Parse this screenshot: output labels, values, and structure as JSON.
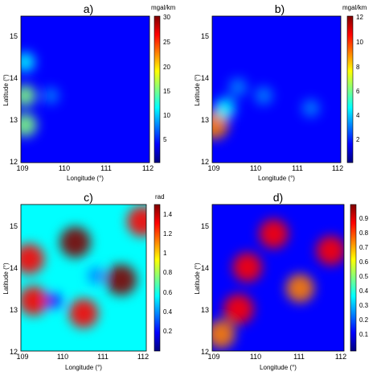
{
  "colormap": [
    "#00007f",
    "#0000ff",
    "#0080ff",
    "#00ffff",
    "#80ff80",
    "#ffff00",
    "#ff8000",
    "#ff0000",
    "#7f0000"
  ],
  "chart_data": [
    {
      "type": "heatmap",
      "title": "a)",
      "xlabel": "Longitude (°)",
      "ylabel": "Latitude (°)",
      "xlim": [
        109,
        112
      ],
      "ylim": [
        12,
        15.5
      ],
      "xticks": [
        "109",
        "110",
        "111",
        "112"
      ],
      "yticks": [
        "12",
        "13",
        "14",
        "15"
      ],
      "colorbar": {
        "unit": "mgal/km",
        "range": [
          0,
          30
        ],
        "ticks": [
          "5",
          "10",
          "15",
          "20",
          "25",
          "30"
        ]
      },
      "field": {
        "base": 0.1,
        "anomalies": [
          {
            "lon": 109.1,
            "lat": 12.9,
            "level": 0.55
          },
          {
            "lon": 109.1,
            "lat": 13.6,
            "level": 0.45
          },
          {
            "lon": 109.1,
            "lat": 14.4,
            "level": 0.35
          },
          {
            "lon": 109.7,
            "lat": 13.6,
            "level": 0.2
          }
        ]
      }
    },
    {
      "type": "heatmap",
      "title": "b)",
      "xlabel": "Longitude (°)",
      "ylabel": "Latitude (°)",
      "xlim": [
        109,
        112
      ],
      "ylim": [
        12,
        15.5
      ],
      "xticks": [
        "109",
        "110",
        "111",
        "112"
      ],
      "yticks": [
        "12",
        "13",
        "14",
        "15"
      ],
      "colorbar": {
        "unit": "mgal/km",
        "range": [
          0,
          12
        ],
        "ticks": [
          "2",
          "4",
          "6",
          "8",
          "10",
          "12"
        ]
      },
      "field": {
        "base": 0.12,
        "anomalies": [
          {
            "lon": 109.05,
            "lat": 12.9,
            "level": 0.8
          },
          {
            "lon": 109.3,
            "lat": 13.3,
            "level": 0.4
          },
          {
            "lon": 109.6,
            "lat": 13.8,
            "level": 0.3
          },
          {
            "lon": 110.2,
            "lat": 13.6,
            "level": 0.28
          },
          {
            "lon": 111.3,
            "lat": 13.3,
            "level": 0.25
          }
        ]
      }
    },
    {
      "type": "heatmap",
      "title": "c)",
      "xlabel": "Longitude (°)",
      "ylabel": "Latitude (°)",
      "xlim": [
        109,
        112
      ],
      "ylim": [
        12,
        15.5
      ],
      "xticks": [
        "109",
        "110",
        "111",
        "112"
      ],
      "yticks": [
        "12",
        "13",
        "14",
        "15"
      ],
      "colorbar": {
        "unit": "rad",
        "range": [
          0,
          1.5
        ],
        "ticks": [
          "0.2",
          "0.4",
          "0.6",
          "0.8",
          "1",
          "1.2",
          "1.4"
        ]
      },
      "field": {
        "base": 0.35,
        "anomalies": [
          {
            "lon": 109.2,
            "lat": 14.2,
            "level": 0.9
          },
          {
            "lon": 109.3,
            "lat": 13.2,
            "level": 0.85
          },
          {
            "lon": 110.3,
            "lat": 14.6,
            "level": 0.95
          },
          {
            "lon": 111.9,
            "lat": 15.1,
            "level": 0.9
          },
          {
            "lon": 111.4,
            "lat": 13.7,
            "level": 0.95
          },
          {
            "lon": 110.5,
            "lat": 12.9,
            "level": 0.85
          },
          {
            "lon": 109.8,
            "lat": 13.2,
            "level": 0.1
          },
          {
            "lon": 110.8,
            "lat": 13.8,
            "level": 0.2
          }
        ]
      }
    },
    {
      "type": "heatmap",
      "title": "d)",
      "xlabel": "Longitude (°)",
      "ylabel": "Latitude (°)",
      "xlim": [
        109,
        112
      ],
      "ylim": [
        12,
        15.5
      ],
      "xticks": [
        "109",
        "110",
        "111",
        "112"
      ],
      "yticks": [
        "12",
        "13",
        "14",
        "15"
      ],
      "colorbar": {
        "unit": "",
        "range": [
          0,
          1
        ],
        "ticks": [
          "0.1",
          "0.2",
          "0.3",
          "0.4",
          "0.5",
          "0.6",
          "0.7",
          "0.8",
          "0.9"
        ]
      },
      "field": {
        "base": 0.08,
        "anomalies": [
          {
            "lon": 109.6,
            "lat": 13.0,
            "level": 0.9
          },
          {
            "lon": 109.8,
            "lat": 14.0,
            "level": 0.85
          },
          {
            "lon": 110.4,
            "lat": 14.8,
            "level": 0.85
          },
          {
            "lon": 111.0,
            "lat": 13.5,
            "level": 0.8
          },
          {
            "lon": 111.7,
            "lat": 14.4,
            "level": 0.85
          },
          {
            "lon": 109.2,
            "lat": 12.4,
            "level": 0.8
          }
        ]
      }
    }
  ]
}
